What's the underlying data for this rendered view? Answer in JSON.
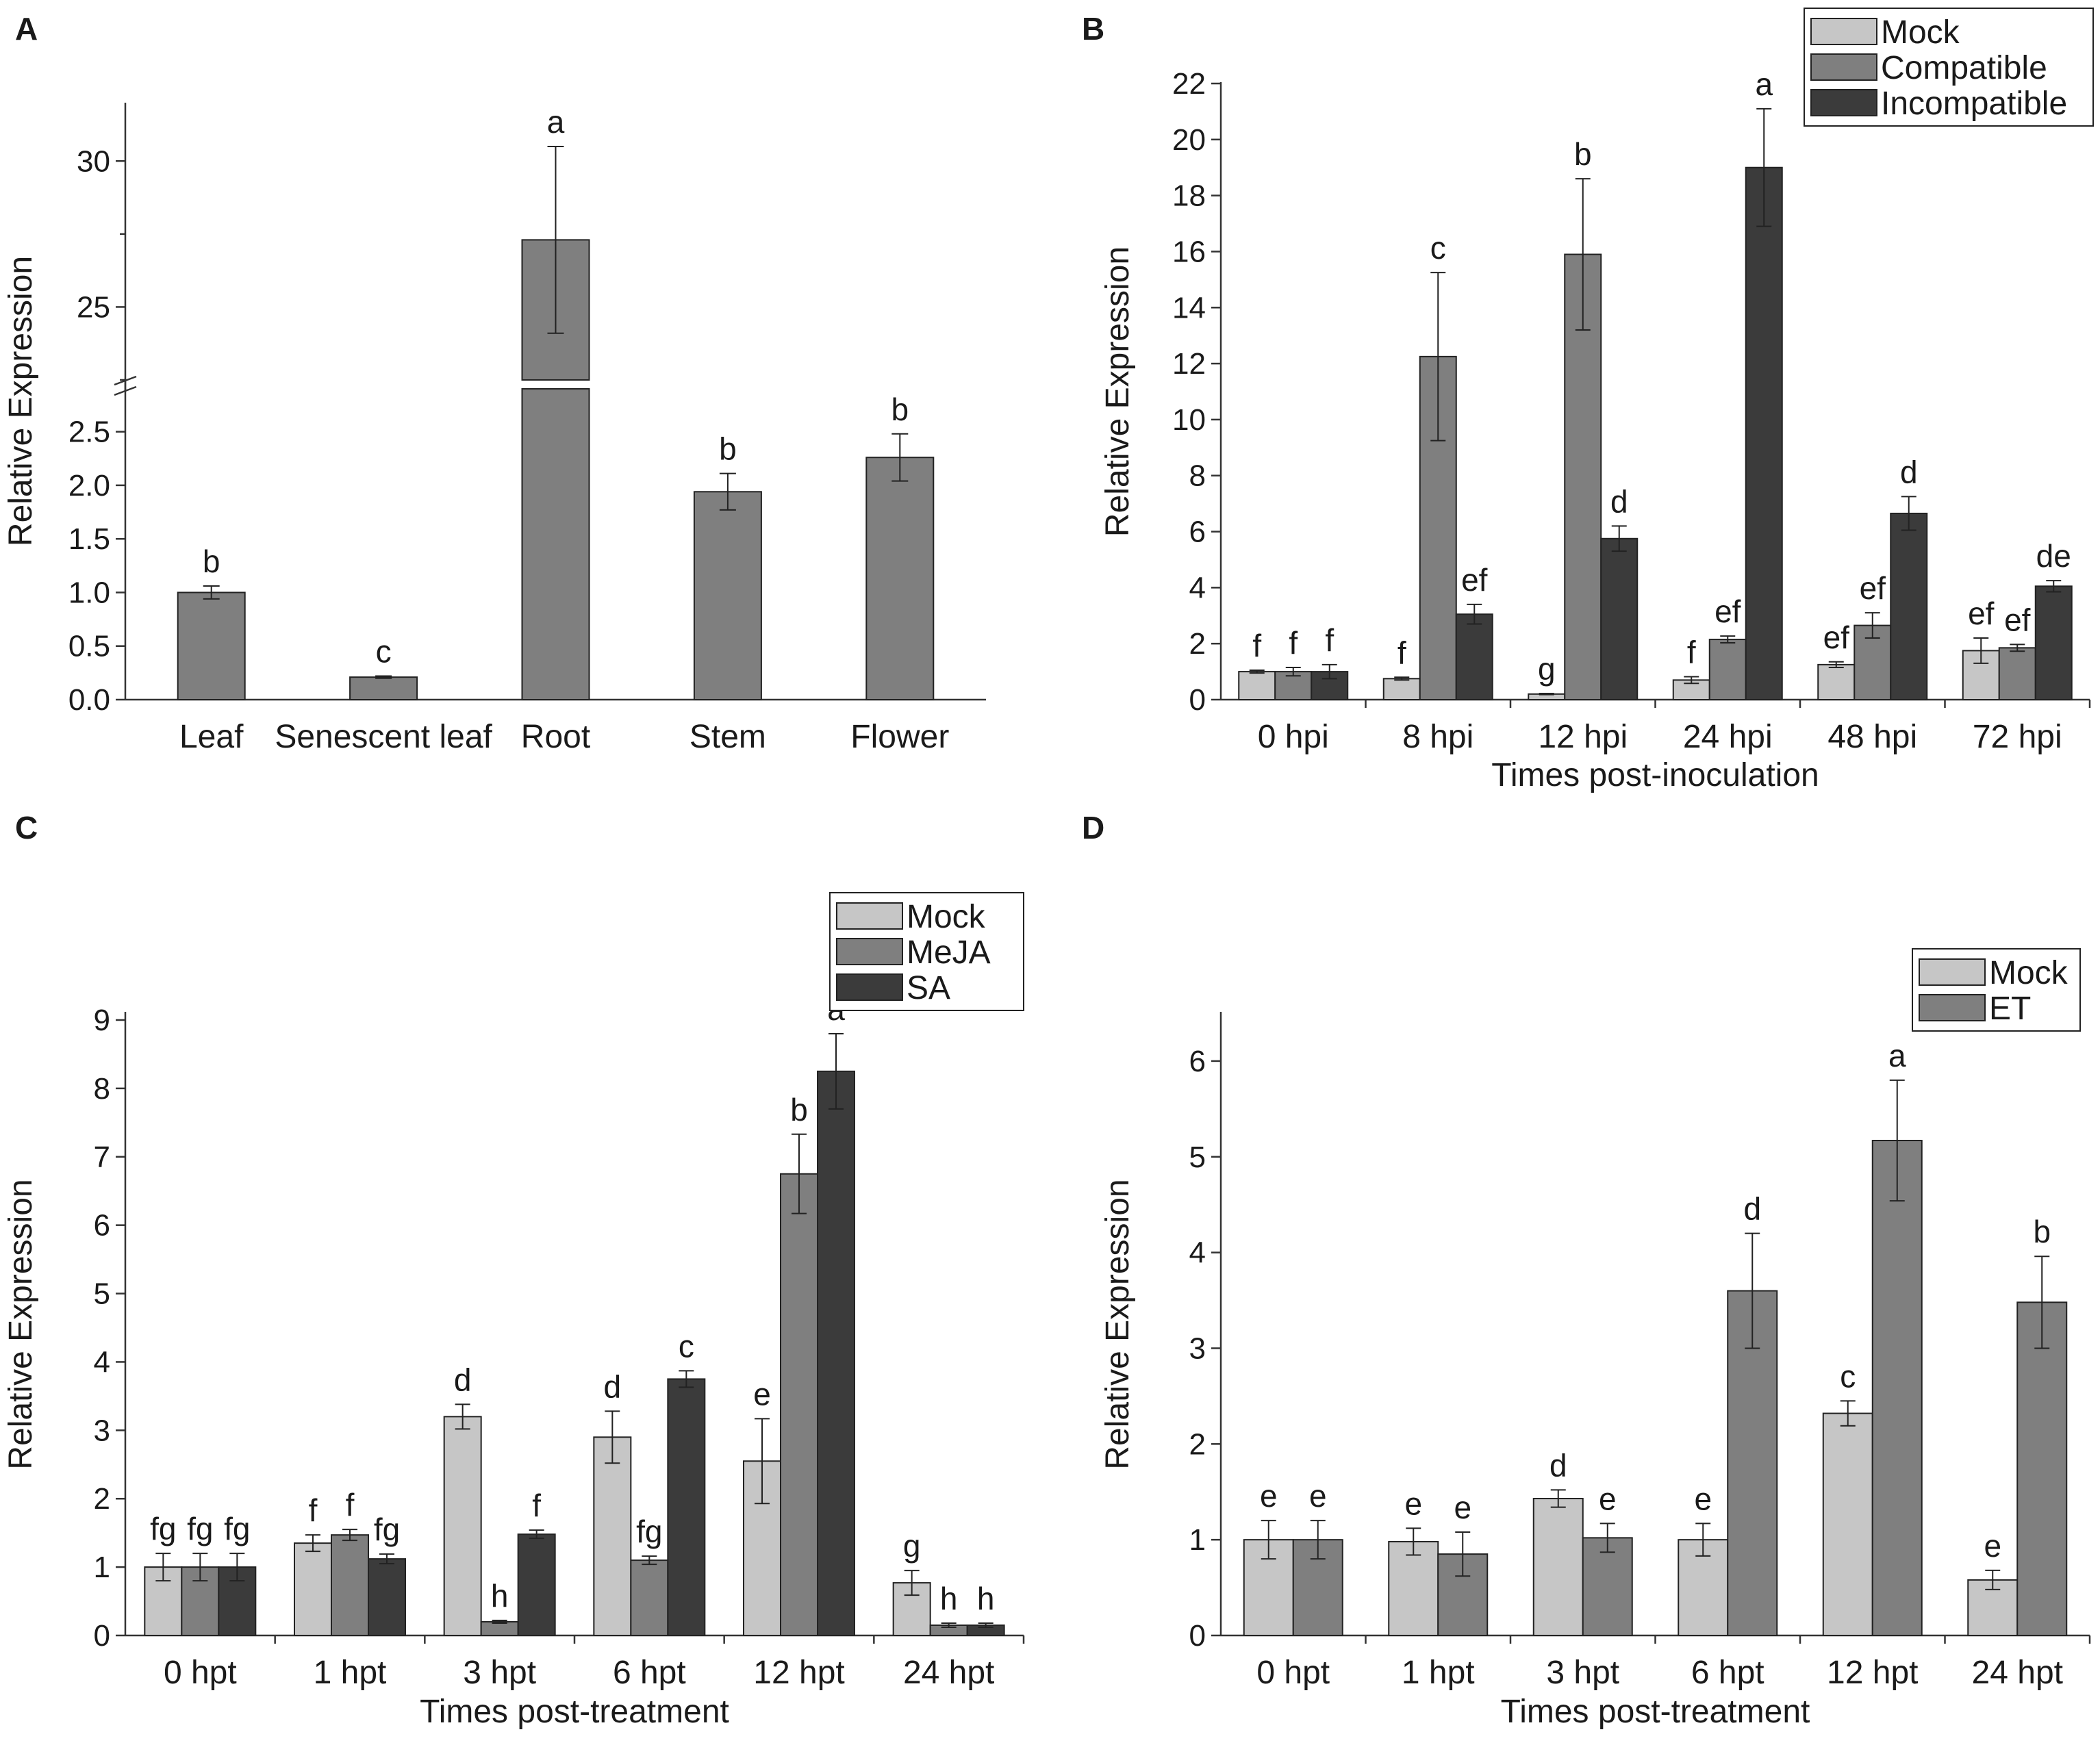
{
  "colors": {
    "mock": "#c6c6c6",
    "treatment": "#7f7f7f",
    "dark": "#3b3b3b",
    "axis": "#333333",
    "text": "#1a1a1a"
  },
  "chart_data": [
    {
      "id": "A",
      "panel_label": "A",
      "type": "bar",
      "title": "",
      "xlabel": "",
      "ylabel": "Relative Expression",
      "broken_axis": true,
      "lower_range": [
        0,
        2.9
      ],
      "upper_range": [
        22.5,
        32
      ],
      "lower_ticks": [
        0.0,
        0.5,
        1.0,
        1.5,
        2.0,
        2.5
      ],
      "lower_tick_labels": [
        "0.0",
        "0.5",
        "1.0",
        "1.5",
        "2.0",
        "2.5"
      ],
      "upper_ticks": [
        25,
        30
      ],
      "upper_tick_labels": [
        "25",
        "30"
      ],
      "categories": [
        "Leaf",
        "Senescent leaf",
        "Root",
        "Stem",
        "Flower"
      ],
      "series": [
        {
          "name": "Expression",
          "color": "#7f7f7f",
          "values": [
            1.0,
            0.21,
            27.3,
            1.94,
            2.26
          ],
          "errors": [
            0.06,
            0.01,
            3.2,
            0.17,
            0.22
          ],
          "labels": [
            "b",
            "c",
            "a",
            "b",
            "b"
          ]
        }
      ]
    },
    {
      "id": "B",
      "panel_label": "B",
      "type": "bar",
      "title": "",
      "xlabel": "Times post-inoculation",
      "ylabel": "Relative Expression",
      "ylim": [
        0,
        22
      ],
      "yticks": [
        0,
        2,
        4,
        6,
        8,
        10,
        12,
        14,
        16,
        18,
        20,
        22
      ],
      "legend_position": "top-right",
      "categories": [
        "0 hpi",
        "8 hpi",
        "12 hpi",
        "24 hpi",
        "48 hpi",
        "72 hpi"
      ],
      "series": [
        {
          "name": "Mock",
          "color": "#c6c6c6",
          "values": [
            1.0,
            0.75,
            0.2,
            0.7,
            1.25,
            1.75
          ],
          "errors": [
            0.05,
            0.05,
            0.02,
            0.12,
            0.1,
            0.45
          ],
          "labels": [
            "f",
            "f",
            "g",
            "f",
            "ef",
            "ef"
          ]
        },
        {
          "name": "Compatible",
          "color": "#7f7f7f",
          "values": [
            1.0,
            12.25,
            15.9,
            2.15,
            2.65,
            1.85
          ],
          "errors": [
            0.15,
            3.0,
            2.7,
            0.12,
            0.45,
            0.12
          ],
          "labels": [
            "f",
            "c",
            "b",
            "ef",
            "ef",
            "ef"
          ]
        },
        {
          "name": "Incompatible",
          "color": "#3b3b3b",
          "values": [
            1.0,
            3.05,
            5.75,
            19.0,
            6.65,
            4.05
          ],
          "errors": [
            0.25,
            0.35,
            0.45,
            2.1,
            0.6,
            0.2
          ],
          "labels": [
            "f",
            "ef",
            "d",
            "a",
            "d",
            "de"
          ]
        }
      ]
    },
    {
      "id": "C",
      "panel_label": "C",
      "type": "bar",
      "title": "",
      "xlabel": "Times post-treatment",
      "ylabel": "Relative Expression",
      "ylim": [
        0,
        9.1
      ],
      "yticks": [
        0,
        1,
        2,
        3,
        4,
        5,
        6,
        7,
        8,
        9
      ],
      "legend_position": "top-right",
      "categories": [
        "0 hpt",
        "1 hpt",
        "3 hpt",
        "6 hpt",
        "12 hpt",
        "24 hpt"
      ],
      "series": [
        {
          "name": "Mock",
          "color": "#c6c6c6",
          "values": [
            1.0,
            1.35,
            3.2,
            2.9,
            2.55,
            0.77
          ],
          "errors": [
            0.2,
            0.12,
            0.18,
            0.38,
            0.62,
            0.18
          ],
          "labels": [
            "fg",
            "f",
            "d",
            "d",
            "e",
            "g"
          ]
        },
        {
          "name": "MeJA",
          "color": "#7f7f7f",
          "values": [
            1.0,
            1.47,
            0.2,
            1.1,
            6.75,
            0.15
          ],
          "errors": [
            0.2,
            0.08,
            0.02,
            0.06,
            0.58,
            0.03
          ],
          "labels": [
            "fg",
            "f",
            "h",
            "fg",
            "b",
            "h"
          ]
        },
        {
          "name": "SA",
          "color": "#3b3b3b",
          "values": [
            1.0,
            1.12,
            1.48,
            3.75,
            8.25,
            0.15
          ],
          "errors": [
            0.2,
            0.07,
            0.06,
            0.12,
            0.55,
            0.03
          ],
          "labels": [
            "fg",
            "fg",
            "f",
            "c",
            "a",
            "h"
          ]
        }
      ]
    },
    {
      "id": "D",
      "panel_label": "D",
      "type": "bar",
      "title": "",
      "xlabel": "Times post-treatment",
      "ylabel": "Relative Expression",
      "ylim": [
        0,
        6.5
      ],
      "yticks": [
        0,
        1,
        2,
        3,
        4,
        5,
        6
      ],
      "legend_position": "top-right",
      "categories": [
        "0 hpt",
        "1 hpt",
        "3 hpt",
        "6 hpt",
        "12 hpt",
        "24 hpt"
      ],
      "series": [
        {
          "name": "Mock",
          "color": "#c6c6c6",
          "values": [
            1.0,
            0.98,
            1.43,
            1.0,
            2.32,
            0.58
          ],
          "errors": [
            0.2,
            0.14,
            0.09,
            0.17,
            0.13,
            0.1
          ],
          "labels": [
            "e",
            "e",
            "d",
            "e",
            "c",
            "e"
          ]
        },
        {
          "name": "ET",
          "color": "#7f7f7f",
          "values": [
            1.0,
            0.85,
            1.02,
            3.6,
            5.17,
            3.48
          ],
          "errors": [
            0.2,
            0.23,
            0.15,
            0.6,
            0.63,
            0.48
          ],
          "labels": [
            "e",
            "e",
            "e",
            "d",
            "a",
            "b"
          ]
        }
      ]
    }
  ]
}
